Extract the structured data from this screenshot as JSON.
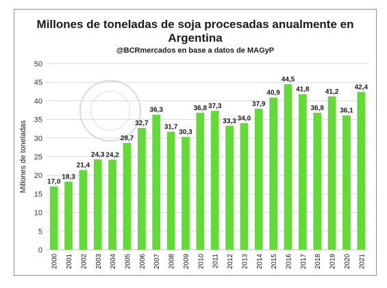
{
  "chart_data": {
    "type": "bar",
    "title": "Millones de toneladas de soja procesadas anualmente en Argentina",
    "title_lines": [
      "Millones de toneladas de soja procesadas anualmente en",
      "Argentina"
    ],
    "subtitle": "@BCRmercados en base a datos de MAGyP",
    "xlabel": "",
    "ylabel": "Millones de toneladas",
    "ylim": [
      0,
      50
    ],
    "yticks": [
      0,
      5,
      10,
      15,
      20,
      25,
      30,
      35,
      40,
      45,
      50
    ],
    "grid": true,
    "categories": [
      "2000",
      "2001",
      "2002",
      "2003",
      "2004",
      "2005",
      "2006",
      "2007",
      "2008",
      "2009",
      "2010",
      "2011",
      "2012",
      "2013",
      "2014",
      "2015",
      "2016",
      "2017",
      "2018",
      "2019",
      "2020",
      "2021"
    ],
    "values": [
      17.0,
      18.3,
      21.4,
      24.3,
      24.2,
      28.7,
      32.7,
      36.3,
      31.7,
      30.3,
      36.8,
      37.3,
      33.3,
      34.0,
      37.9,
      40.9,
      44.5,
      41.8,
      36.8,
      41.2,
      36.1,
      42.4
    ],
    "data_labels": [
      "17,0",
      "18,3",
      "21,4",
      "24,3",
      "24,2",
      "28,7",
      "32,7",
      "36,3",
      "31,7",
      "30,3",
      "36,8",
      "37,3",
      "33,3",
      "34,0",
      "37,9",
      "40,9",
      "44,5",
      "41,8",
      "36,8",
      "41,2",
      "36,1",
      "42,4"
    ],
    "bar_color": "#66d93a",
    "watermark": "BOLSA DE COMERCIO DE ROSARIO"
  }
}
